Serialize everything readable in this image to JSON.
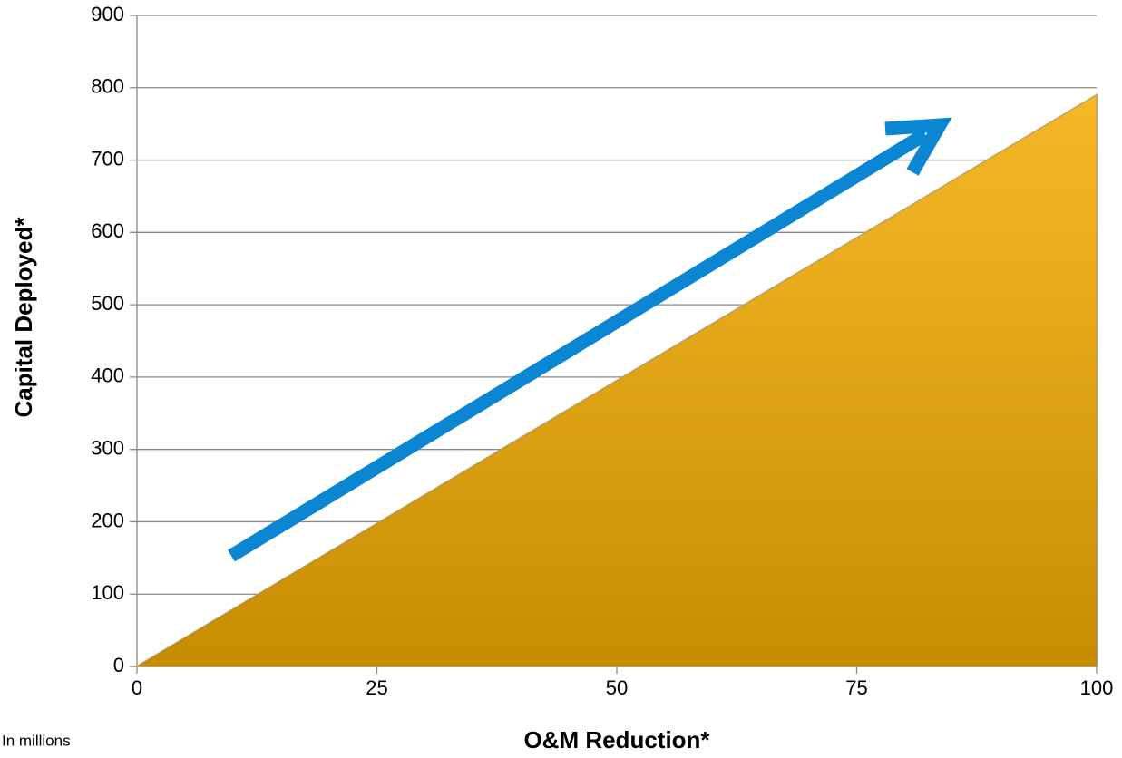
{
  "chart_data": {
    "type": "area",
    "x": [
      0,
      100
    ],
    "values": [
      0,
      790
    ],
    "color": "#f2ab00",
    "xlabel": "O&M Reduction*",
    "ylabel": "Capital Deployed*",
    "note": "In millions",
    "xlim": [
      0,
      100
    ],
    "xticks": [
      0,
      25,
      50,
      75,
      100
    ],
    "ylim": [
      0,
      900
    ],
    "yticks": [
      0,
      100,
      200,
      300,
      400,
      500,
      600,
      700,
      800,
      900
    ],
    "grid": true
  }
}
